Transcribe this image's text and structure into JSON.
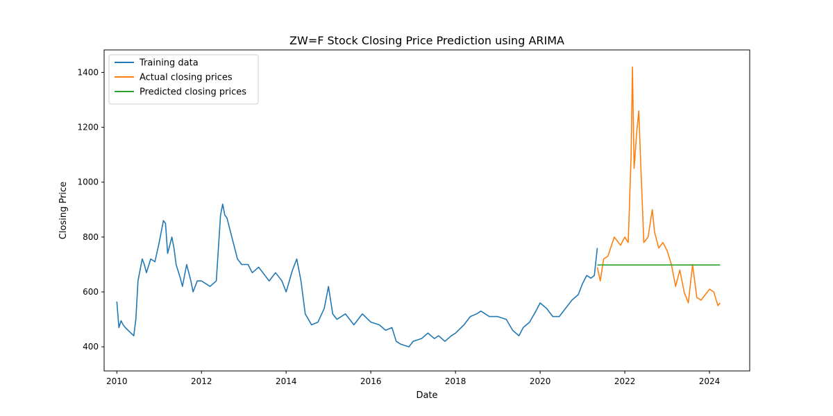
{
  "chart_data": {
    "type": "line",
    "title": "ZW=F Stock Closing Price Prediction using ARIMA",
    "xlabel": "Date",
    "ylabel": "Closing Price",
    "xlim": [
      2009.7,
      2024.95
    ],
    "ylim": [
      312,
      1482
    ],
    "xticks": [
      2010,
      2012,
      2014,
      2016,
      2018,
      2020,
      2022,
      2024
    ],
    "xtick_labels": [
      "2010",
      "2012",
      "2014",
      "2016",
      "2018",
      "2020",
      "2022",
      "2024"
    ],
    "yticks": [
      400,
      600,
      800,
      1000,
      1200,
      1400
    ],
    "ytick_labels": [
      "400",
      "600",
      "800",
      "1000",
      "1200",
      "1400"
    ],
    "grid": false,
    "legend_position": "upper-left",
    "series": [
      {
        "name": "Training data",
        "color": "#1f77b4",
        "x": [
          2010.0,
          2010.05,
          2010.1,
          2010.15,
          2010.2,
          2010.3,
          2010.4,
          2010.45,
          2010.5,
          2010.55,
          2010.6,
          2010.65,
          2010.7,
          2010.8,
          2010.9,
          2011.0,
          2011.1,
          2011.15,
          2011.2,
          2011.3,
          2011.35,
          2011.4,
          2011.5,
          2011.55,
          2011.65,
          2011.75,
          2011.8,
          2011.9,
          2012.0,
          2012.2,
          2012.35,
          2012.45,
          2012.5,
          2012.55,
          2012.6,
          2012.75,
          2012.85,
          2012.95,
          2013.1,
          2013.2,
          2013.35,
          2013.5,
          2013.6,
          2013.75,
          2013.9,
          2014.0,
          2014.15,
          2014.25,
          2014.35,
          2014.45,
          2014.6,
          2014.75,
          2014.9,
          2015.0,
          2015.1,
          2015.2,
          2015.4,
          2015.5,
          2015.6,
          2015.8,
          2016.0,
          2016.2,
          2016.35,
          2016.5,
          2016.6,
          2016.7,
          2016.9,
          2017.0,
          2017.2,
          2017.35,
          2017.5,
          2017.6,
          2017.75,
          2017.9,
          2018.0,
          2018.2,
          2018.35,
          2018.5,
          2018.6,
          2018.8,
          2019.0,
          2019.2,
          2019.35,
          2019.5,
          2019.6,
          2019.75,
          2019.9,
          2020.0,
          2020.15,
          2020.3,
          2020.45,
          2020.6,
          2020.75,
          2020.9,
          2021.0,
          2021.1,
          2021.2,
          2021.28,
          2021.35
        ],
        "y": [
          565,
          470,
          495,
          480,
          470,
          455,
          440,
          500,
          640,
          680,
          720,
          700,
          670,
          720,
          710,
          780,
          860,
          850,
          740,
          800,
          760,
          700,
          650,
          620,
          700,
          640,
          600,
          640,
          640,
          620,
          640,
          880,
          920,
          880,
          870,
          780,
          720,
          700,
          700,
          670,
          690,
          660,
          640,
          670,
          640,
          600,
          680,
          720,
          640,
          520,
          480,
          490,
          540,
          620,
          520,
          500,
          520,
          500,
          480,
          520,
          490,
          480,
          460,
          470,
          420,
          410,
          400,
          420,
          430,
          450,
          430,
          440,
          420,
          440,
          450,
          480,
          510,
          520,
          530,
          510,
          510,
          500,
          460,
          440,
          470,
          490,
          530,
          560,
          540,
          510,
          510,
          540,
          570,
          590,
          630,
          660,
          650,
          660,
          760
        ]
      },
      {
        "name": "Actual closing prices",
        "color": "#ff7f0e",
        "x": [
          2021.35,
          2021.42,
          2021.5,
          2021.6,
          2021.75,
          2021.9,
          2022.0,
          2022.08,
          2022.15,
          2022.18,
          2022.22,
          2022.28,
          2022.33,
          2022.38,
          2022.45,
          2022.55,
          2022.65,
          2022.7,
          2022.8,
          2022.9,
          2023.0,
          2023.1,
          2023.2,
          2023.3,
          2023.4,
          2023.5,
          2023.6,
          2023.7,
          2023.8,
          2023.9,
          2024.0,
          2024.1,
          2024.2,
          2024.25
        ],
        "y": [
          690,
          640,
          720,
          730,
          800,
          770,
          800,
          780,
          1100,
          1420,
          1050,
          1180,
          1260,
          1050,
          780,
          800,
          900,
          820,
          760,
          780,
          750,
          700,
          620,
          680,
          600,
          560,
          700,
          580,
          570,
          590,
          610,
          600,
          550,
          560
        ]
      },
      {
        "name": "Predicted closing prices",
        "color": "#2ca02c",
        "x": [
          2021.35,
          2024.25
        ],
        "y": [
          698,
          698
        ]
      }
    ]
  }
}
